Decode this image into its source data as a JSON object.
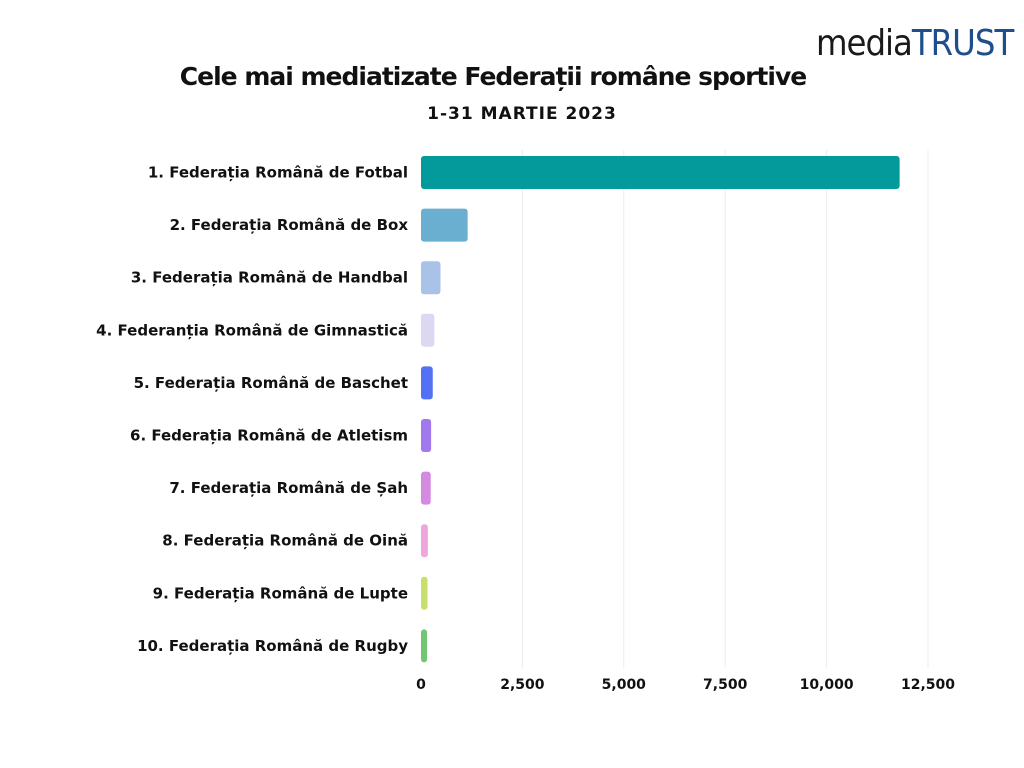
{
  "logo": {
    "part1": "media",
    "part2": "TRUST"
  },
  "chart_data": {
    "type": "bar",
    "orientation": "horizontal",
    "title": "Cele mai mediatizate Federații române sportive",
    "subtitle": "1-31 MARTIE 2023",
    "categories": [
      "1. Federația Română de Fotbal",
      "2. Federația Română de Box",
      "3. Federația Română de Handbal",
      "4. Federanția Română de Gimnastică",
      "5. Federația Română de Baschet",
      "6. Federația Română de Atletism",
      "7. Federația Română de Șah",
      "8. Federația Română de Oină",
      "9. Federația Română de Lupte",
      "10. Federația Română de Rugby"
    ],
    "values": [
      11800,
      1150,
      480,
      330,
      290,
      250,
      240,
      170,
      160,
      150
    ],
    "colors": [
      "#049a9b",
      "#6aaed0",
      "#a9c3e8",
      "#dcd8f2",
      "#5470f5",
      "#a278ed",
      "#d58ae2",
      "#eea7dd",
      "#c8e06b",
      "#73c576"
    ],
    "xlim": [
      0,
      12500
    ],
    "xticks": [
      0,
      2500,
      5000,
      7500,
      10000,
      12500
    ],
    "xtick_labels": [
      "0",
      "2,500",
      "5,000",
      "7,500",
      "10,000",
      "12,500"
    ],
    "grid": "vertical"
  }
}
